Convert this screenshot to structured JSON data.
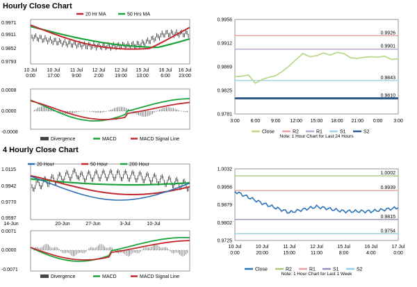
{
  "section1": {
    "title": "Hourly Close Chart"
  },
  "section2": {
    "title": "4 Hourly Close Chart"
  },
  "charts": {
    "h_price": {
      "legend": [
        "20 Hr MA",
        "50 Hrs MA"
      ],
      "yticks": [
        "0.9971",
        "0.9911",
        "0.9852",
        "0.9793"
      ],
      "xticks": [
        [
          "10 Jul",
          "0:00"
        ],
        [
          "10 Jul",
          "17:00"
        ],
        [
          "11 Jul",
          "9:00"
        ],
        [
          "12 Jul",
          "2:00"
        ],
        [
          "12 Jul",
          "19:00"
        ],
        [
          "15 Jul",
          "13:00"
        ],
        [
          "16 Jul",
          "6:00"
        ],
        [
          "16 Jul",
          "23:00"
        ]
      ]
    },
    "h_macd": {
      "yticks": [
        "0.0008",
        "0.0000",
        "-0.0008"
      ],
      "legend": [
        "Divergence",
        "MACD",
        "MACD Signal Line"
      ]
    },
    "h24": {
      "yticks": [
        "0.9956",
        "0.9912",
        "0.9869",
        "0.9825",
        "0.9781"
      ],
      "xticks": [
        "3:00",
        "6:00",
        "9:00",
        "12:00",
        "15:00",
        "18:00",
        "21:00",
        "0:00",
        "3:00"
      ],
      "levels": [
        {
          "label": "0.9926",
          "value": 0.9926
        },
        {
          "label": "0.9901",
          "value": 0.9901
        },
        {
          "label": "0.9843",
          "value": 0.9843
        },
        {
          "label": "0.9810",
          "value": 0.981
        }
      ],
      "legend": [
        "Close",
        "R2",
        "R1",
        "S1",
        "S2"
      ],
      "note": "Note: 1 Hour Chart for Last 24 Hours"
    },
    "f_price": {
      "legend": [
        "20 Hour",
        "50 Hour",
        "200 Hour"
      ],
      "yticks": [
        "1.0115",
        "0.9942",
        "0.9770",
        "0.9597"
      ],
      "xticks": [
        "14-Jun",
        "20-Jun",
        "27-Jun",
        "3-Jul",
        "10-Jul"
      ]
    },
    "f_macd": {
      "yticks": [
        "0.0071",
        "0.0000",
        "-0.0071"
      ],
      "legend": [
        "Divergence",
        "MACD",
        "MACD Signal Line"
      ]
    },
    "w1": {
      "yticks": [
        "1.0032",
        "0.9956",
        "0.9879",
        "0.9802",
        "0.9725"
      ],
      "xticks": [
        [
          "10 Jul",
          "0:00"
        ],
        [
          "10 Jul",
          "20:00"
        ],
        [
          "11 Jul",
          "15:00"
        ],
        [
          "12 Jul",
          "11:00"
        ],
        [
          "15 Jul",
          "8:00"
        ],
        [
          "16 Jul",
          "4:00"
        ],
        [
          "17 Jul",
          "0:00"
        ]
      ],
      "levels": [
        {
          "label": "1.0002",
          "value": 1.0002
        },
        {
          "label": "0.9939",
          "value": 0.9939
        },
        {
          "label": "0.9815",
          "value": 0.9815
        },
        {
          "label": "0.9754",
          "value": 0.9754
        }
      ],
      "legend": [
        "Close",
        "R2",
        "R1",
        "S1",
        "S2"
      ],
      "note": "Note: 1 Hour Chart for Last 1 Week"
    }
  },
  "colors": {
    "ma_short": "#c0282d",
    "ma_long": "#1aa33a",
    "ma_20": "#2f6fb5",
    "close_light": "#b9d98a",
    "r2": "#9fc26c",
    "r1": "#e7a3a3",
    "s1": "#b9a7cf",
    "s2_light": "#9cd3e6",
    "s2_dark": "#2c5a8c",
    "close_dark": "#2a73b6",
    "r2_dark": "#a8c97d",
    "s1_dark": "#9c8abd",
    "s2_alt": "#96cfe2"
  },
  "chart_data": [
    {
      "id": "hourly_24h",
      "type": "line",
      "x": [
        "3:00",
        "4:00",
        "5:00",
        "6:00",
        "7:00",
        "8:00",
        "9:00",
        "10:00",
        "11:00",
        "12:00",
        "13:00",
        "14:00",
        "15:00",
        "16:00",
        "17:00",
        "18:00",
        "19:00",
        "20:00",
        "21:00",
        "22:00",
        "23:00",
        "0:00",
        "1:00",
        "2:00",
        "3:00"
      ],
      "series": [
        {
          "name": "Close",
          "values": [
            0.985,
            0.9851,
            0.9853,
            0.9838,
            0.9845,
            0.9849,
            0.9852,
            0.986,
            0.987,
            0.9882,
            0.9893,
            0.9887,
            0.9889,
            0.9894,
            0.989,
            0.9895,
            0.9893,
            0.9885,
            0.9884,
            0.9886,
            0.9887,
            0.9886,
            0.9888,
            0.9882,
            0.9883
          ]
        }
      ],
      "levels": {
        "R2": 0.9926,
        "R1": 0.9901,
        "S1": 0.9843,
        "S2": 0.981
      },
      "ylim": [
        0.9781,
        0.9956
      ]
    },
    {
      "id": "hourly_1week",
      "type": "line",
      "x": [
        "10 Jul 0:00",
        "10 Jul 20:00",
        "11 Jul 15:00",
        "12 Jul 11:00",
        "15 Jul 8:00",
        "16 Jul 4:00",
        "17 Jul 0:00"
      ],
      "series": [
        {
          "name": "Close",
          "values": [
            0.9935,
            0.9885,
            0.9845,
            0.987,
            0.985,
            0.985,
            0.9865
          ]
        }
      ],
      "levels": {
        "R2": 1.0002,
        "R1": 0.9939,
        "S1": 0.9815,
        "S2": 0.9754
      },
      "ylim": [
        0.9725,
        1.0032
      ]
    }
  ]
}
